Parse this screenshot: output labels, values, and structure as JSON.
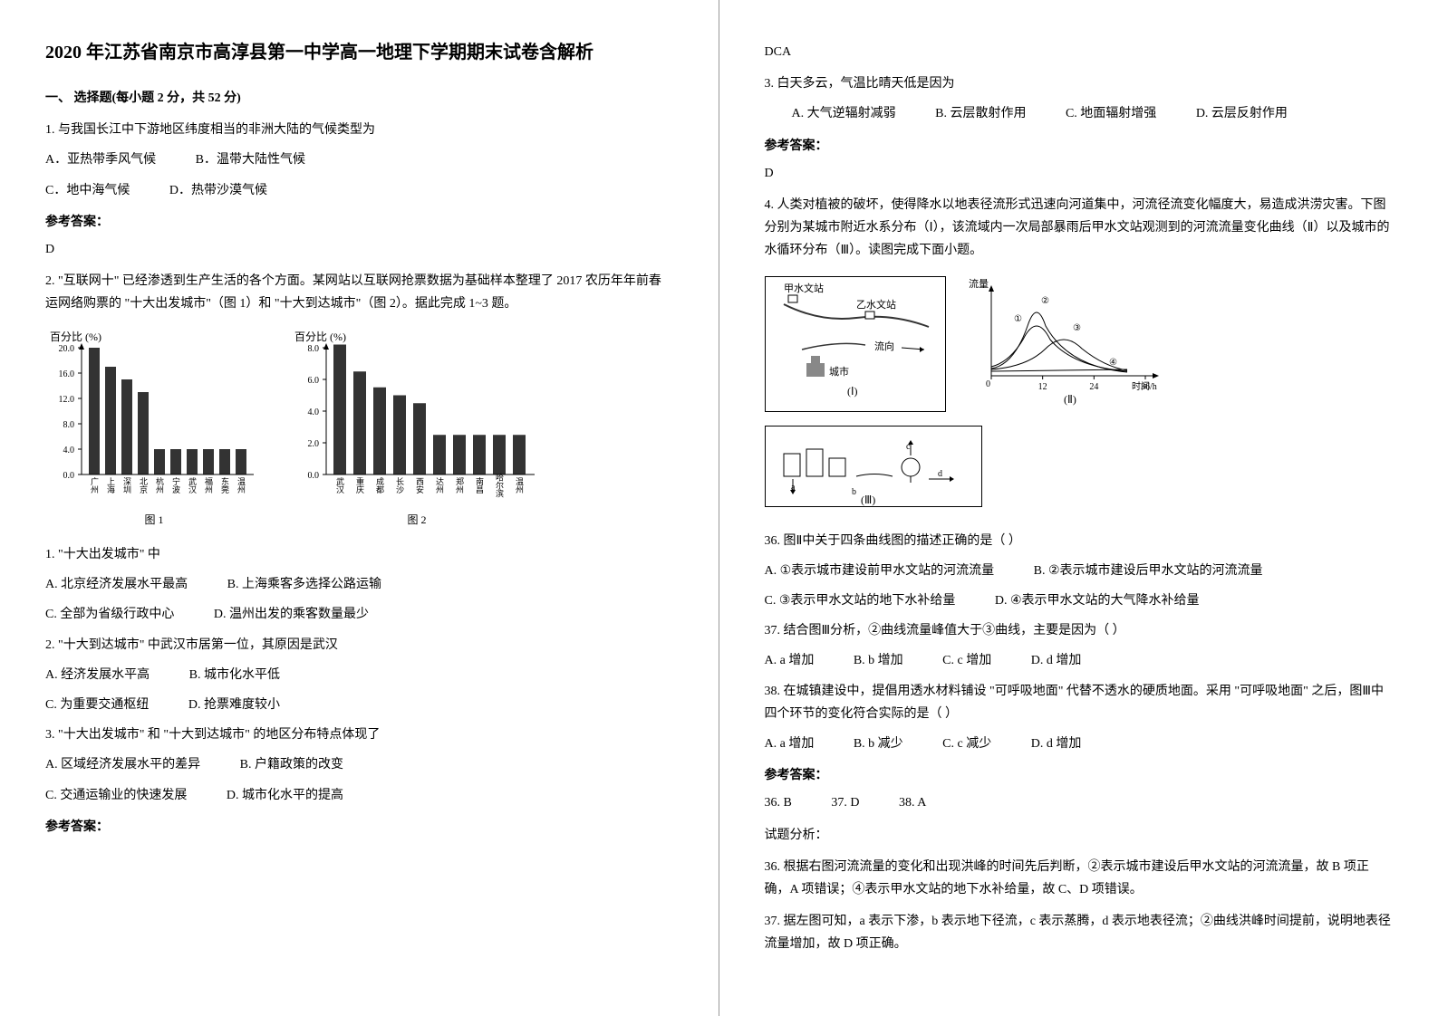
{
  "title": "2020 年江苏省南京市高淳县第一中学高一地理下学期期末试卷含解析",
  "section1": {
    "heading": "一、 选择题(每小题 2 分，共 52 分)",
    "q1": {
      "stem": "1. 与我国长江中下游地区纬度相当的非洲大陆的气候类型为",
      "optA": "A．亚热带季风气候",
      "optB": "B．温带大陆性气候",
      "optC": "C．地中海气候",
      "optD": "D．热带沙漠气候",
      "answerLabel": "参考答案：",
      "answer": "D"
    },
    "q2": {
      "stem": "2. \"互联网十\" 已经渗透到生产生活的各个方面。某网站以互联网抢票数据为基础样本整理了 2017 农历年年前春运网络购票的 \"十大出发城市\"（图 1）和 \"十大到达城市\"（图 2）。据此完成 1~3 题。",
      "chart1": {
        "yLabel": "百分比 (%)",
        "categories": [
          "广州",
          "上海",
          "深圳",
          "北京",
          "杭州",
          "宁波",
          "武汉",
          "福州",
          "东莞",
          "温州"
        ],
        "values": [
          20,
          17,
          15,
          13,
          4,
          4,
          4,
          4,
          4,
          4
        ],
        "yMax": 20,
        "yTicks": [
          0,
          4,
          8,
          12,
          16,
          20
        ],
        "barColor": "#333333",
        "caption": "图 1"
      },
      "chart2": {
        "yLabel": "百分比 (%)",
        "categories": [
          "武汉",
          "重庆",
          "成都",
          "长沙",
          "西安",
          "达州",
          "郑州",
          "南昌",
          "哈尔滨",
          "温州"
        ],
        "values": [
          8.2,
          6.5,
          5.5,
          5,
          4.5,
          2.5,
          2.5,
          2.5,
          2.5,
          2.5
        ],
        "yMax": 8,
        "yTicks": [
          0,
          2,
          4,
          6,
          8
        ],
        "barColor": "#333333",
        "caption": "图 2"
      },
      "sub1": {
        "stem": "1. \"十大出发城市\" 中",
        "optA": "A. 北京经济发展水平最高",
        "optB": "B. 上海乘客多选择公路运输",
        "optC": "C. 全部为省级行政中心",
        "optD": "D. 温州出发的乘客数量最少"
      },
      "sub2": {
        "stem": "2. \"十大到达城市\" 中武汉市居第一位，其原因是武汉",
        "optA": "A. 经济发展水平高",
        "optB": "B. 城市化水平低",
        "optC": "C. 为重要交通枢纽",
        "optD": "D. 抢票难度较小"
      },
      "sub3": {
        "stem": "3. \"十大出发城市\" 和 \"十大到达城市\" 的地区分布特点体现了",
        "optA": "A. 区域经济发展水平的差异",
        "optB": "B. 户籍政策的改变",
        "optC": "C. 交通运输业的快速发展",
        "optD": "D. 城市化水平的提高"
      },
      "answerLabel": "参考答案：",
      "answer": "DCA"
    },
    "q3": {
      "stem": "3. 白天多云，气温比晴天低是因为",
      "optA": "A. 大气逆辐射减弱",
      "optB": "B. 云层散射作用",
      "optC": "C. 地面辐射增强",
      "optD": "D. 云层反射作用",
      "answerLabel": "参考答案：",
      "answer": "D"
    },
    "q4": {
      "stem": "4. 人类对植被的破坏，使得降水以地表径流形式迅速向河道集中，河流径流变化幅度大，易造成洪涝灾害。下图分别为某城市附近水系分布（Ⅰ），该流域内一次局部暴雨后甲水文站观测到的河流流量变化曲线（Ⅱ）以及城市的水循环分布（Ⅲ）。读图完成下面小题。",
      "diagram1": {
        "labels": [
          "甲水文站",
          "乙水文站",
          "城市",
          "流向",
          "(Ⅰ)"
        ]
      },
      "diagram2": {
        "yLabel": "流量",
        "xLabel": "时间/h",
        "xTicks": [
          0,
          12,
          24,
          36
        ],
        "curves": [
          "①",
          "②",
          "③",
          "④"
        ],
        "caption": "(Ⅱ)"
      },
      "diagram3": {
        "labels": [
          "a",
          "b",
          "c",
          "d"
        ],
        "caption": "(Ⅲ)"
      },
      "sub36": {
        "stem": "36.  图Ⅱ中关于四条曲线图的描述正确的是（       ）",
        "optA": "A.  ①表示城市建设前甲水文站的河流流量",
        "optB": "B.  ②表示城市建设后甲水文站的河流流量",
        "optC": "C.  ③表示甲水文站的地下水补给量",
        "optD": "D.  ④表示甲水文站的大气降水补给量"
      },
      "sub37": {
        "stem": "37.  结合图Ⅲ分析，②曲线流量峰值大于③曲线，主要是因为（       ）",
        "optA": "A.  a 增加",
        "optB": "B.  b 增加",
        "optC": "C.  c 增加",
        "optD": "D.  d 增加"
      },
      "sub38": {
        "stem": "38.  在城镇建设中，提倡用透水材料铺设 \"可呼吸地面\" 代替不透水的硬质地面。采用 \"可呼吸地面\" 之后，图Ⅲ中四个环节的变化符合实际的是（       ）",
        "optA": "A.  a 增加",
        "optB": "B.  b 减少",
        "optC": "C.  c 减少",
        "optD": "D.  d 增加"
      },
      "answerLabel": "参考答案：",
      "answer36": "36.  B",
      "answer37": "37.  D",
      "answer38": "38.  A",
      "analysisLabel": "试题分析：",
      "analysis36": "36.  根据右图河流流量的变化和出现洪峰的时间先后判断，②表示城市建设后甲水文站的河流流量，故 B 项正确，A 项错误；④表示甲水文站的地下水补给量，故 C、D 项错误。",
      "analysis37": "37.  据左图可知，a 表示下渗，b 表示地下径流，c 表示蒸腾，d 表示地表径流；②曲线洪峰时间提前，说明地表径流量增加，故 D 项正确。"
    }
  }
}
